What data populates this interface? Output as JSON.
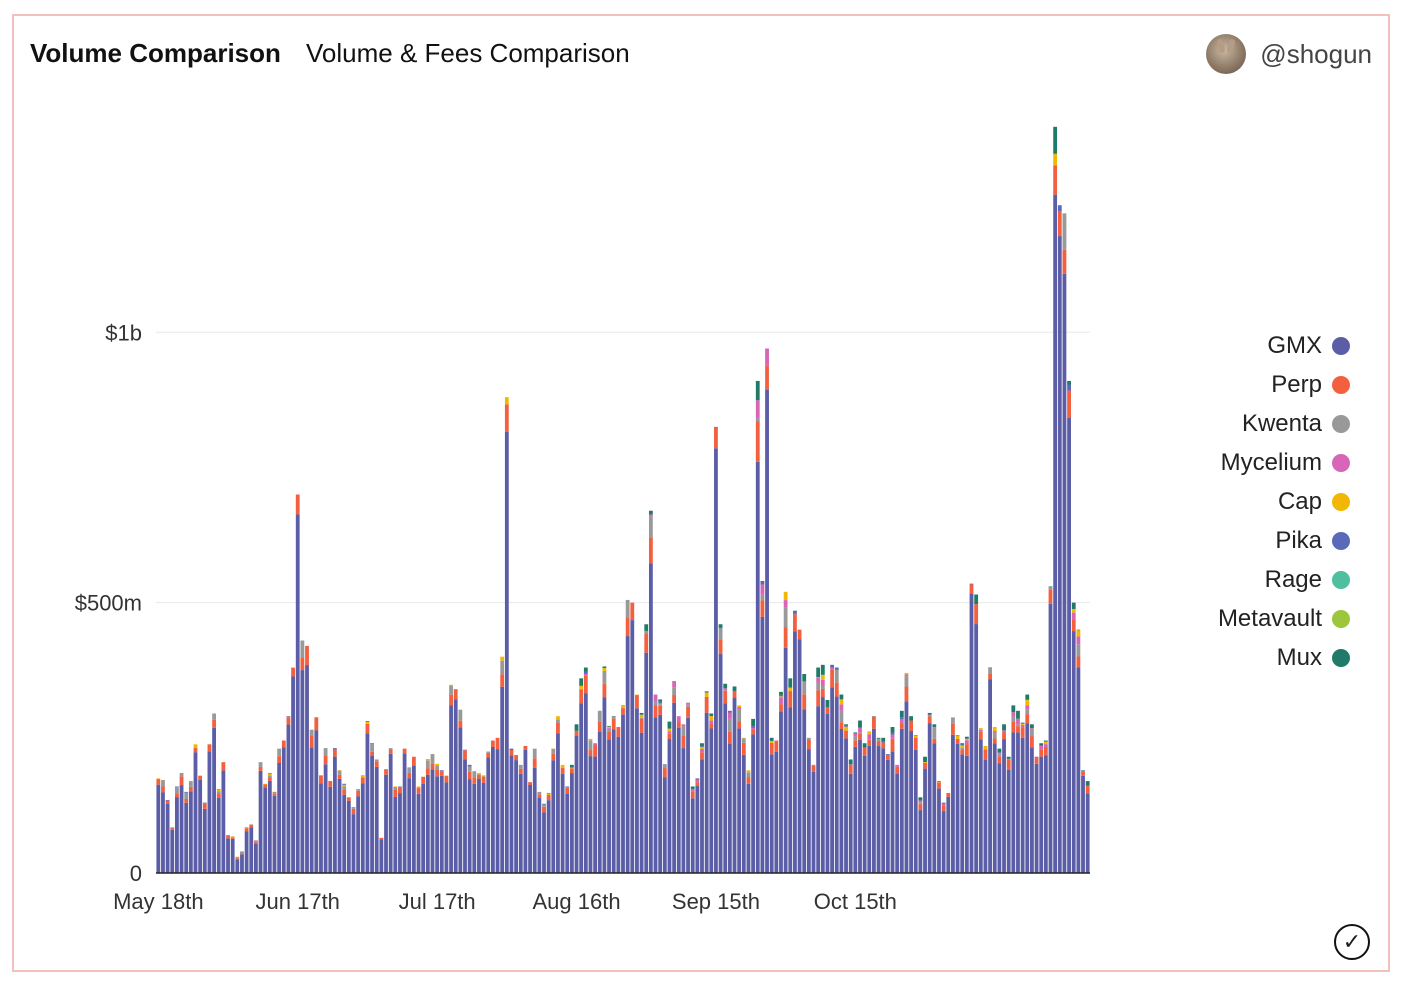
{
  "header": {
    "title": "Volume Comparison",
    "subtitle": "Volume & Fees Comparison",
    "handle": "@shogun"
  },
  "chart_data": {
    "type": "bar",
    "stacked": true,
    "ylim": [
      0,
      1400
    ],
    "y_unit": "millions USD",
    "yticks": [
      {
        "value": 0,
        "label": "0"
      },
      {
        "value": 500,
        "label": "$500m"
      },
      {
        "value": 1000,
        "label": "$1b"
      }
    ],
    "xticks": [
      {
        "index": 0,
        "label": "May 18th"
      },
      {
        "index": 30,
        "label": "Jun 17th"
      },
      {
        "index": 60,
        "label": "Jul 17th"
      },
      {
        "index": 90,
        "label": "Aug 16th"
      },
      {
        "index": 120,
        "label": "Sep 15th"
      },
      {
        "index": 150,
        "label": "Oct 15th"
      }
    ],
    "grid": true,
    "legend_position": "right",
    "series": [
      {
        "name": "GMX",
        "color": "#5b5ea6"
      },
      {
        "name": "Perp",
        "color": "#f2603f"
      },
      {
        "name": "Kwenta",
        "color": "#999999"
      },
      {
        "name": "Mycelium",
        "color": "#d865b8"
      },
      {
        "name": "Cap",
        "color": "#f2b705"
      },
      {
        "name": "Pika",
        "color": "#5a6ab8"
      },
      {
        "name": "Rage",
        "color": "#4fbf9f"
      },
      {
        "name": "Metavault",
        "color": "#9cc63b"
      },
      {
        "name": "Mux",
        "color": "#1f7a67"
      }
    ],
    "totals": [
      175,
      172,
      135,
      85,
      160,
      185,
      150,
      170,
      238,
      180,
      130,
      238,
      295,
      155,
      205,
      70,
      68,
      30,
      40,
      85,
      90,
      60,
      205,
      165,
      185,
      150,
      230,
      245,
      290,
      380,
      700,
      430,
      420,
      265,
      288,
      181,
      231,
      170,
      231,
      190,
      165,
      140,
      122,
      155,
      181,
      281,
      240,
      210,
      65,
      192,
      231,
      160,
      160,
      230,
      195,
      215,
      160,
      178,
      210,
      220,
      202,
      190,
      180,
      348,
      340,
      302,
      228,
      200,
      188,
      185,
      180,
      225,
      245,
      250,
      400,
      880,
      230,
      218,
      200,
      235,
      168,
      230,
      150,
      128,
      148,
      230,
      290,
      200,
      160,
      200,
      275,
      360,
      380,
      248,
      240,
      300,
      382,
      272,
      290,
      270,
      310,
      505,
      500,
      330,
      296,
      460,
      670,
      330,
      321,
      201,
      280,
      355,
      290,
      275,
      315,
      160,
      175,
      240,
      336,
      295,
      825,
      460,
      350,
      300,
      345,
      310,
      250,
      190,
      285,
      910,
      540,
      970,
      250,
      245,
      335,
      520,
      360,
      485,
      450,
      368,
      250,
      200,
      380,
      385,
      320,
      385,
      380,
      330,
      275,
      210,
      260,
      282,
      240,
      262,
      290,
      250,
      250,
      220,
      270,
      200,
      300,
      370,
      290,
      255,
      140,
      215,
      296,
      275,
      170,
      130,
      148,
      288,
      255,
      240,
      252,
      535,
      515,
      268,
      235,
      380,
      270,
      230,
      275,
      215,
      310,
      300,
      278,
      330,
      275,
      215,
      240,
      245,
      530,
      1380,
      1235,
      1220,
      910,
      500,
      450,
      190,
      170
    ]
  },
  "footer": {
    "check_icon": "check-circle-icon"
  }
}
